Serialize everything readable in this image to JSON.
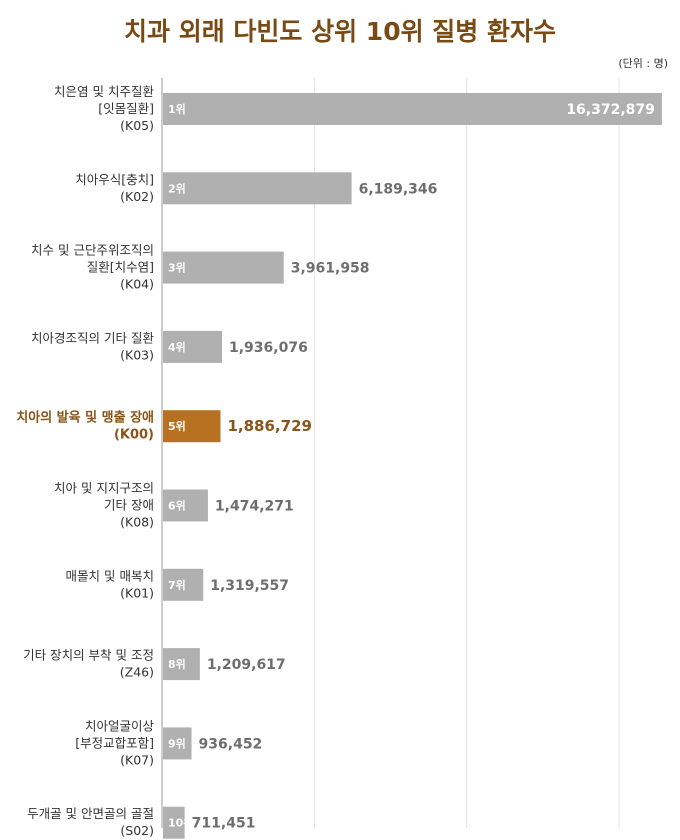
{
  "title": "치과 외래 다빈도 상위 10위 질병 환자수",
  "unit": "(단위 : 명)",
  "colors": {
    "bar": "#b0b0b0",
    "highlight": "#b87120",
    "title": "#7a4a14",
    "grid": "#e2e2e2",
    "axis": "#999999"
  },
  "chart_data": {
    "type": "bar",
    "orientation": "horizontal",
    "title": "치과 외래 다빈도 상위 10위 질병 환자수",
    "unit": "(단위 : 명)",
    "xlim": [
      0,
      17000000
    ],
    "grid": true,
    "highlight_index": 4,
    "categories": [
      [
        "치은염 및 치주질환",
        "[잇몸질환]",
        "(K05)"
      ],
      [
        "치아우식[충치]",
        "(K02)"
      ],
      [
        "치수 및 근단주위조직의",
        "질환[치수염]",
        "(K04)"
      ],
      [
        "치아경조직의 기타 질환",
        "(K03)"
      ],
      [
        "치아의 발육 및 맹출 장애",
        "(K00)"
      ],
      [
        "치아 및 지지구조의",
        "기타 장애",
        "(K08)"
      ],
      [
        "매몰치 및 매복치",
        "(K01)"
      ],
      [
        "기타 장치의 부착 및 조정",
        "(Z46)"
      ],
      [
        "치아얼굴이상",
        "[부정교합포함]",
        "(K07)"
      ],
      [
        "두개골 및 안면골의 골절",
        "(S02)"
      ]
    ],
    "ranks": [
      "1위",
      "2위",
      "3위",
      "4위",
      "5위",
      "6위",
      "7위",
      "8위",
      "9위",
      "10위"
    ],
    "values": [
      16372879,
      6189346,
      3961958,
      1936076,
      1886729,
      1474271,
      1319557,
      1209617,
      936452,
      711451
    ],
    "value_labels": [
      "16,372,879",
      "6,189,346",
      "3,961,958",
      "1,936,076",
      "1,886,729",
      "1,474,271",
      "1,319,557",
      "1,209,617",
      "936,452",
      "711,451"
    ]
  }
}
